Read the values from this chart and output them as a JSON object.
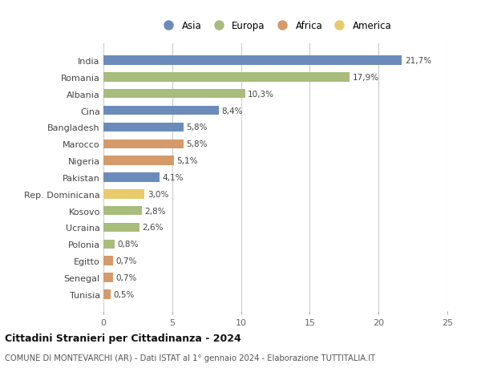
{
  "countries": [
    "India",
    "Romania",
    "Albania",
    "Cina",
    "Bangladesh",
    "Marocco",
    "Nigeria",
    "Pakistan",
    "Rep. Dominicana",
    "Kosovo",
    "Ucraina",
    "Polonia",
    "Egitto",
    "Senegal",
    "Tunisia"
  ],
  "values": [
    21.7,
    17.9,
    10.3,
    8.4,
    5.8,
    5.8,
    5.1,
    4.1,
    3.0,
    2.8,
    2.6,
    0.8,
    0.7,
    0.7,
    0.5
  ],
  "labels": [
    "21,7%",
    "17,9%",
    "10,3%",
    "8,4%",
    "5,8%",
    "5,8%",
    "5,1%",
    "4,1%",
    "3,0%",
    "2,8%",
    "2,6%",
    "0,8%",
    "0,7%",
    "0,7%",
    "0,5%"
  ],
  "continents": [
    "Asia",
    "Europa",
    "Europa",
    "Asia",
    "Asia",
    "Africa",
    "Africa",
    "Asia",
    "America",
    "Europa",
    "Europa",
    "Europa",
    "Africa",
    "Africa",
    "Africa"
  ],
  "colors": {
    "Asia": "#6b8cba",
    "Europa": "#a8bc7b",
    "Africa": "#d49a6a",
    "America": "#e8c96b"
  },
  "legend_order": [
    "Asia",
    "Europa",
    "Africa",
    "America"
  ],
  "xlim": [
    0,
    25
  ],
  "xticks": [
    0,
    5,
    10,
    15,
    20,
    25
  ],
  "title": "Cittadini Stranieri per Cittadinanza - 2024",
  "subtitle": "COMUNE DI MONTEVARCHI (AR) - Dati ISTAT al 1° gennaio 2024 - Elaborazione TUTTITALIA.IT",
  "bg_color": "#ffffff",
  "grid_color": "#cccccc",
  "bar_height": 0.55
}
